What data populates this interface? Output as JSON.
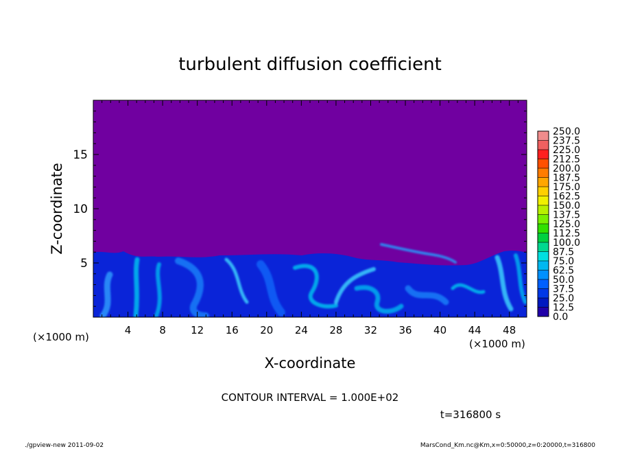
{
  "chart_data": {
    "type": "heatmap",
    "title": "turbulent diffusion coefficient",
    "xlabel": "X-coordinate",
    "ylabel": "Z-coordinate",
    "x_unit": "(×1000 m)",
    "y_unit": "(×1000 m)",
    "xlim": [
      0,
      50
    ],
    "ylim": [
      0,
      20
    ],
    "x_ticks": [
      "4",
      "8",
      "12",
      "16",
      "20",
      "24",
      "28",
      "32",
      "36",
      "40",
      "44",
      "48"
    ],
    "y_ticks": [
      "5",
      "10",
      "15"
    ],
    "colorbar": {
      "levels": [
        "250.0",
        "237.5",
        "225.0",
        "212.5",
        "200.0",
        "187.5",
        "175.0",
        "162.5",
        "150.0",
        "137.5",
        "125.0",
        "112.5",
        "100.0",
        "87.5",
        "75.0",
        "62.5",
        "50.0",
        "37.5",
        "25.0",
        "12.5",
        "0.0"
      ],
      "colors": [
        "#f08c8c",
        "#f06060",
        "#ff2020",
        "#ff5000",
        "#ff7c00",
        "#ffa600",
        "#ffd000",
        "#f0f000",
        "#b8f000",
        "#78f000",
        "#30e000",
        "#00d040",
        "#00d890",
        "#00e0e0",
        "#00b8f0",
        "#0090ff",
        "#0060ff",
        "#0038e8",
        "#0018c0",
        "#2000a8",
        "#7000a0"
      ]
    },
    "background_color": "#7000a0",
    "contour_interval": "CONTOUR INTERVAL = 1.000E+02",
    "time_label": "t=316800 s"
  },
  "footer": {
    "left": "./gpview-new   2011-09-02",
    "right": "MarsCond_Km.nc@Km,x=0:50000,z=0:20000,t=316800"
  }
}
